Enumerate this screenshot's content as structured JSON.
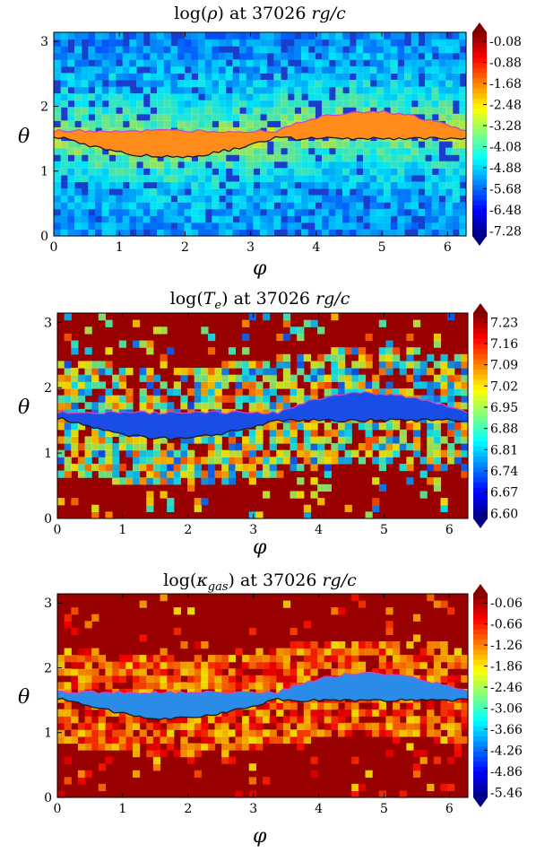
{
  "chart_data": [
    {
      "type": "heatmap",
      "title_prefix": "log(",
      "title_var": "ρ",
      "title_suffix": ") at 37026 ",
      "title_unit": "rg/c",
      "xlabel": "φ",
      "ylabel": "θ",
      "xlim": [
        0,
        6.283
      ],
      "ylim": [
        0,
        3.1416
      ],
      "xticks": [
        "0",
        "1",
        "2",
        "3",
        "4",
        "5",
        "6"
      ],
      "yticks": [
        "0",
        "1",
        "2",
        "3"
      ],
      "colorbar_ticks": [
        "-0.08",
        "-0.88",
        "-1.68",
        "-2.48",
        "-3.28",
        "-4.08",
        "-4.88",
        "-5.68",
        "-6.48",
        "-7.28"
      ],
      "colormap": "jet",
      "background": "#1a3dcc",
      "disk_color": "#ff8c1a",
      "contour_colors": [
        "#1a1a1a",
        "#cc44cc"
      ]
    },
    {
      "type": "heatmap",
      "title_prefix": "log(",
      "title_var": "Te",
      "title_suffix": ") at 37026 ",
      "title_unit": "rg/c",
      "xlabel": "φ",
      "ylabel": "θ",
      "xlim": [
        0,
        6.283
      ],
      "ylim": [
        0,
        3.1416
      ],
      "xticks": [
        "0",
        "1",
        "2",
        "3",
        "4",
        "5",
        "6"
      ],
      "yticks": [
        "0",
        "1",
        "2",
        "3"
      ],
      "colorbar_ticks": [
        "7.23",
        "7.16",
        "7.09",
        "7.02",
        "6.95",
        "6.88",
        "6.81",
        "6.74",
        "6.67",
        "6.60"
      ],
      "colormap": "jet",
      "background": "#990000",
      "disk_color": "#1a4de6",
      "contour_colors": [
        "#1a1a1a",
        "#cc44cc"
      ]
    },
    {
      "type": "heatmap",
      "title_prefix": "log(",
      "title_var": "κgas",
      "title_suffix": ") at 37026 ",
      "title_unit": "rg/c",
      "xlabel": "φ",
      "ylabel": "θ",
      "xlim": [
        0,
        6.283
      ],
      "ylim": [
        0,
        3.1416
      ],
      "xticks": [
        "0",
        "1",
        "2",
        "3",
        "4",
        "5",
        "6"
      ],
      "yticks": [
        "0",
        "1",
        "2",
        "3"
      ],
      "colorbar_ticks": [
        "-0.06",
        "-0.66",
        "-1.26",
        "-1.86",
        "-2.46",
        "-3.06",
        "-3.66",
        "-4.26",
        "-4.86",
        "-5.46"
      ],
      "colormap": "jet",
      "background": "#990000",
      "disk_color": "#2a8ce6",
      "contour_colors": [
        "#1a1a1a",
        "#cc44cc"
      ]
    }
  ]
}
